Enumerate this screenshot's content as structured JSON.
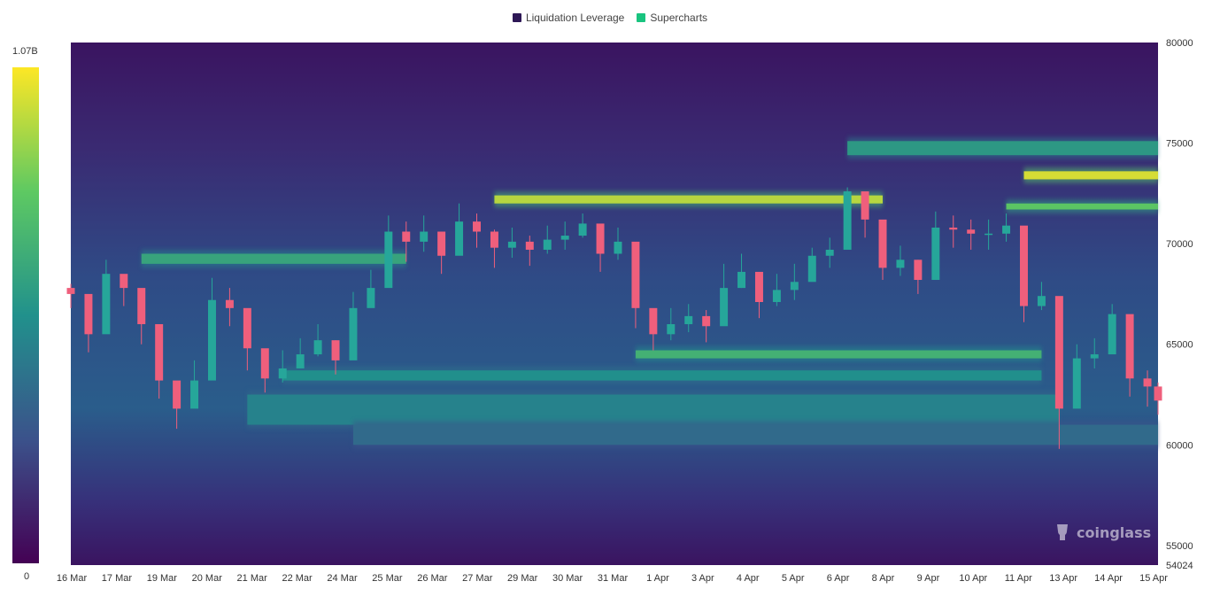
{
  "legend": {
    "items": [
      {
        "label": "Liquidation Leverage",
        "color": "#2e1856"
      },
      {
        "label": "Supercharts",
        "color": "#19c47f"
      }
    ]
  },
  "colorbar": {
    "max_label": "1.07B",
    "min_label": "0",
    "colors": [
      "#440154",
      "#3b528b",
      "#21918c",
      "#5ec962",
      "#fde725"
    ]
  },
  "watermark": {
    "text": "coinglass",
    "icon": "coinglass-logo-icon"
  },
  "chart_data": {
    "type": "heatmap",
    "title": "",
    "xlabel": "",
    "ylabel": "",
    "x_ticks": [
      "16 Mar",
      "17 Mar",
      "19 Mar",
      "20 Mar",
      "21 Mar",
      "22 Mar",
      "24 Mar",
      "25 Mar",
      "26 Mar",
      "27 Mar",
      "29 Mar",
      "30 Mar",
      "31 Mar",
      "1 Apr",
      "3 Apr",
      "4 Apr",
      "5 Apr",
      "6 Apr",
      "8 Apr",
      "9 Apr",
      "10 Apr",
      "11 Apr",
      "13 Apr",
      "14 Apr",
      "15 Apr"
    ],
    "y_ticks": [
      80000,
      75000,
      70000,
      65000,
      60000,
      55000,
      54024
    ],
    "ylim": [
      54024,
      80000
    ],
    "y_axis_side": "right",
    "x_start": "16 Mar",
    "x_end_day": 30.8,
    "price_series": {
      "name": "Price",
      "up_color": "#26a69a",
      "down_color": "#ef5f7c",
      "x_days": [
        0,
        0.5,
        1,
        1.5,
        2,
        2.5,
        3,
        3.5,
        4,
        4.5,
        5,
        5.5,
        6,
        6.5,
        7,
        7.5,
        8,
        8.5,
        9,
        9.5,
        10,
        10.5,
        11,
        11.5,
        12,
        12.5,
        13,
        13.5,
        14,
        14.5,
        15,
        15.5,
        16,
        16.5,
        17,
        17.5,
        18,
        18.5,
        19,
        19.5,
        20,
        20.5,
        21,
        21.5,
        22,
        22.5,
        23,
        23.5,
        24,
        24.5,
        25,
        25.5,
        26,
        26.5,
        27,
        27.5,
        28,
        28.5,
        29,
        29.5,
        30,
        30.5,
        30.8
      ],
      "close": [
        67500,
        65500,
        68500,
        67800,
        66000,
        63200,
        61800,
        63200,
        67200,
        66800,
        64800,
        63300,
        63800,
        64500,
        65200,
        64200,
        66800,
        67800,
        70600,
        70100,
        70600,
        69400,
        71100,
        70600,
        69800,
        70100,
        69700,
        70200,
        70400,
        71000,
        69500,
        70100,
        66800,
        65500,
        66000,
        66400,
        65900,
        67800,
        68600,
        67100,
        67700,
        68100,
        69400,
        69700,
        72600,
        71200,
        68800,
        69200,
        68200,
        70800,
        70700,
        70500,
        70500,
        70900,
        66900,
        67400,
        61800,
        64300,
        64500,
        66500,
        63300,
        62900,
        62200
      ],
      "high": [
        68000,
        66200,
        69200,
        68400,
        66600,
        64000,
        63000,
        64200,
        68300,
        67800,
        65800,
        64400,
        64700,
        65300,
        66000,
        65200,
        67600,
        68700,
        71400,
        71100,
        71400,
        70300,
        72000,
        71500,
        70700,
        70800,
        70400,
        70900,
        71100,
        71500,
        70300,
        70800,
        67600,
        66400,
        66800,
        67000,
        66700,
        69000,
        69500,
        68000,
        68500,
        69000,
        69800,
        70300,
        72800,
        72100,
        69700,
        69900,
        69200,
        71600,
        71400,
        71200,
        71200,
        71500,
        67900,
        68100,
        62800,
        65000,
        65300,
        67000,
        64300,
        63700,
        63100
      ],
      "low": [
        66800,
        64600,
        67400,
        66900,
        65000,
        62300,
        60800,
        62400,
        66200,
        65900,
        63700,
        62600,
        63100,
        63800,
        64400,
        63500,
        66000,
        67000,
        69600,
        69100,
        69600,
        68500,
        70300,
        69800,
        68800,
        69300,
        68900,
        69500,
        69700,
        70300,
        68600,
        69200,
        65800,
        64700,
        65200,
        65600,
        65100,
        66900,
        67800,
        66300,
        66900,
        67200,
        68700,
        68800,
        70500,
        70300,
        68200,
        68400,
        67500,
        69900,
        69800,
        69700,
        69700,
        70100,
        66100,
        66700,
        59800,
        62900,
        63800,
        65700,
        62400,
        61900,
        61500
      ]
    },
    "liquidation_bands": [
      {
        "y_from": 73200,
        "y_to": 73600,
        "x_from_day": 27.0,
        "x_to_day": 30.8,
        "level": 0.95
      },
      {
        "y_from": 72000,
        "y_to": 72400,
        "x_from_day": 12.0,
        "x_to_day": 23.0,
        "level": 0.9
      },
      {
        "y_from": 71700,
        "y_to": 72000,
        "x_from_day": 26.5,
        "x_to_day": 30.8,
        "level": 0.75
      },
      {
        "y_from": 74400,
        "y_to": 75100,
        "x_from_day": 22.0,
        "x_to_day": 30.8,
        "level": 0.55
      },
      {
        "y_from": 69000,
        "y_to": 69500,
        "x_from_day": 2.0,
        "x_to_day": 9.5,
        "level": 0.6
      },
      {
        "y_from": 64300,
        "y_to": 64700,
        "x_from_day": 16.0,
        "x_to_day": 27.5,
        "level": 0.65
      },
      {
        "y_from": 63200,
        "y_to": 63700,
        "x_from_day": 6.0,
        "x_to_day": 27.5,
        "level": 0.5
      },
      {
        "y_from": 61000,
        "y_to": 62500,
        "x_from_day": 5.0,
        "x_to_day": 28.0,
        "level": 0.45
      },
      {
        "y_from": 60000,
        "y_to": 61000,
        "x_from_day": 8.0,
        "x_to_day": 30.8,
        "level": 0.35
      }
    ]
  }
}
